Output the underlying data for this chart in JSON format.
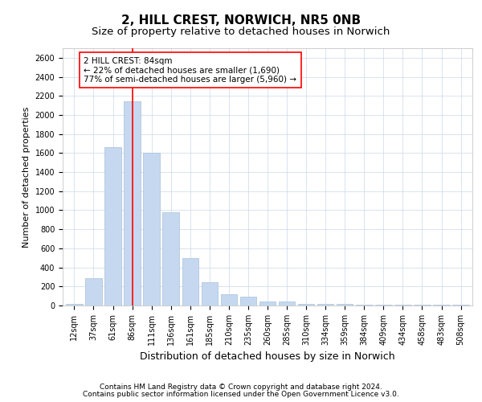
{
  "title": "2, HILL CREST, NORWICH, NR5 0NB",
  "subtitle": "Size of property relative to detached houses in Norwich",
  "xlabel": "Distribution of detached houses by size in Norwich",
  "ylabel": "Number of detached properties",
  "categories": [
    "12sqm",
    "37sqm",
    "61sqm",
    "86sqm",
    "111sqm",
    "136sqm",
    "161sqm",
    "185sqm",
    "210sqm",
    "235sqm",
    "260sqm",
    "285sqm",
    "310sqm",
    "334sqm",
    "359sqm",
    "384sqm",
    "409sqm",
    "434sqm",
    "458sqm",
    "483sqm",
    "508sqm"
  ],
  "values": [
    20,
    290,
    1660,
    2140,
    1600,
    975,
    500,
    245,
    115,
    95,
    40,
    40,
    20,
    15,
    15,
    10,
    10,
    10,
    10,
    5,
    10
  ],
  "bar_color": "#c5d8f0",
  "bar_edge_color": "#a8bfd8",
  "vline_x_index": 3,
  "vline_color": "red",
  "annotation_text_line1": "2 HILL CREST: 84sqm",
  "annotation_text_line2": "← 22% of detached houses are smaller (1,690)",
  "annotation_text_line3": "77% of semi-detached houses are larger (5,960) →",
  "annotation_box_color": "white",
  "annotation_box_edge": "red",
  "ylim": [
    0,
    2700
  ],
  "yticks": [
    0,
    200,
    400,
    600,
    800,
    1000,
    1200,
    1400,
    1600,
    1800,
    2000,
    2200,
    2400,
    2600
  ],
  "footer1": "Contains HM Land Registry data © Crown copyright and database right 2024.",
  "footer2": "Contains public sector information licensed under the Open Government Licence v3.0.",
  "title_fontsize": 11,
  "subtitle_fontsize": 9.5,
  "ylabel_fontsize": 8,
  "xlabel_fontsize": 9,
  "tick_fontsize": 7,
  "annotation_fontsize": 7.5,
  "footer_fontsize": 6.5
}
